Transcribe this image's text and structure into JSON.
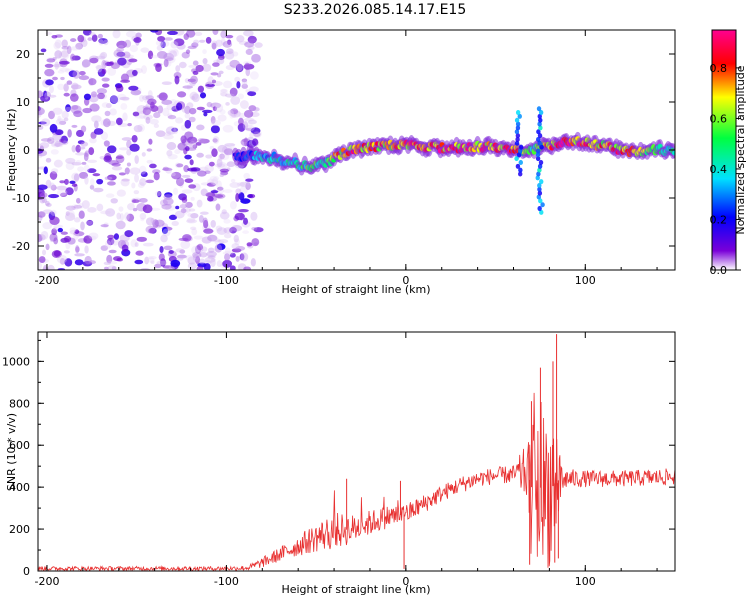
{
  "title": "S233.2026.085.14.17.E15",
  "chart_data": [
    {
      "type": "heatmap",
      "name": "spectrogram",
      "xlabel": "Height of straight line (km)",
      "ylabel": "Frequency (Hz)",
      "xlim": [
        -205,
        150
      ],
      "ylim": [
        -25,
        25
      ],
      "xticks": [
        -200,
        -100,
        0,
        100
      ],
      "yticks": [
        -20,
        -10,
        0,
        10,
        20
      ],
      "colorbar": {
        "label": "Normalized spectral amplitude",
        "range": [
          0.0,
          0.95
        ],
        "ticks": [
          "0.0",
          "0.2",
          "0.4",
          "0.6",
          "0.8"
        ],
        "colors": [
          "#ffffff",
          "#6a00d0",
          "#0000ff",
          "#00e0ff",
          "#00ff40",
          "#ffff00",
          "#ff0000",
          "#ff00a0"
        ]
      },
      "noise_region": {
        "x": [
          -205,
          -88
        ],
        "amplitude": 0.25
      },
      "ridge": {
        "x": [
          -95,
          -85,
          -75,
          -65,
          -55,
          -45,
          -38,
          -30,
          -20,
          -10,
          0,
          10,
          20,
          30,
          40,
          50,
          60,
          65,
          70,
          75,
          80,
          85,
          90,
          100,
          110,
          120,
          130,
          140,
          150
        ],
        "freq": [
          -1.5,
          -1.0,
          -1.5,
          -2.5,
          -3.5,
          -3.0,
          -1.0,
          0.0,
          0.5,
          1.0,
          1.0,
          0.5,
          0.5,
          0.5,
          0.8,
          0.5,
          0.2,
          0.0,
          0.0,
          0.5,
          1.0,
          1.5,
          2.0,
          1.5,
          1.0,
          0.0,
          -0.5,
          0.0,
          0.0
        ],
        "amp": [
          0.3,
          0.4,
          0.5,
          0.5,
          0.6,
          0.55,
          0.8,
          0.9,
          0.8,
          0.85,
          0.9,
          0.9,
          0.95,
          0.9,
          0.9,
          0.85,
          0.95,
          0.7,
          0.5,
          0.7,
          0.8,
          0.9,
          0.95,
          0.9,
          0.8,
          0.9,
          0.7,
          0.6,
          0.5
        ]
      },
      "spikes": [
        {
          "x": 63,
          "freq_range": [
            -5,
            8
          ],
          "amp": 0.45
        },
        {
          "x": 75,
          "freq_range": [
            -13,
            9
          ],
          "amp": 0.5
        }
      ]
    },
    {
      "type": "line",
      "name": "snr",
      "xlabel": "Height of straight line (km)",
      "ylabel": "SNR (10 * v/v)",
      "xlim": [
        -205,
        150
      ],
      "ylim": [
        0,
        1140
      ],
      "xticks": [
        -200,
        -100,
        0,
        100
      ],
      "yticks": [
        0,
        200,
        400,
        600,
        800,
        1000
      ],
      "color": "#e83030",
      "series": [
        {
          "name": "SNR",
          "x": [
            -205,
            -150,
            -100,
            -88,
            -80,
            -70,
            -60,
            -50,
            -40,
            -30,
            -20,
            -10,
            0,
            10,
            20,
            30,
            40,
            50,
            60,
            68,
            72,
            76,
            80,
            84,
            88,
            100,
            120,
            150
          ],
          "baseline": [
            12,
            12,
            12,
            15,
            40,
            80,
            120,
            160,
            190,
            200,
            230,
            260,
            270,
            320,
            370,
            410,
            440,
            455,
            460,
            470,
            330,
            420,
            380,
            430,
            440,
            440,
            440,
            450
          ],
          "noise": [
            10,
            10,
            10,
            12,
            25,
            35,
            50,
            70,
            90,
            70,
            60,
            55,
            50,
            45,
            40,
            40,
            40,
            40,
            45,
            150,
            300,
            350,
            380,
            300,
            50,
            40,
            40,
            40
          ]
        }
      ],
      "peaks": [
        {
          "x": 69,
          "y": 30
        },
        {
          "x": 70,
          "y": 810
        },
        {
          "x": 75,
          "y": 970
        },
        {
          "x": 82,
          "y": 1000
        },
        {
          "x": 83,
          "y": 40
        },
        {
          "x": 84,
          "y": 1130
        },
        {
          "x": 85,
          "y": 60
        },
        {
          "x": -33,
          "y": 440
        },
        {
          "x": -3,
          "y": 430
        },
        {
          "x": -1,
          "y": 10
        }
      ]
    }
  ]
}
